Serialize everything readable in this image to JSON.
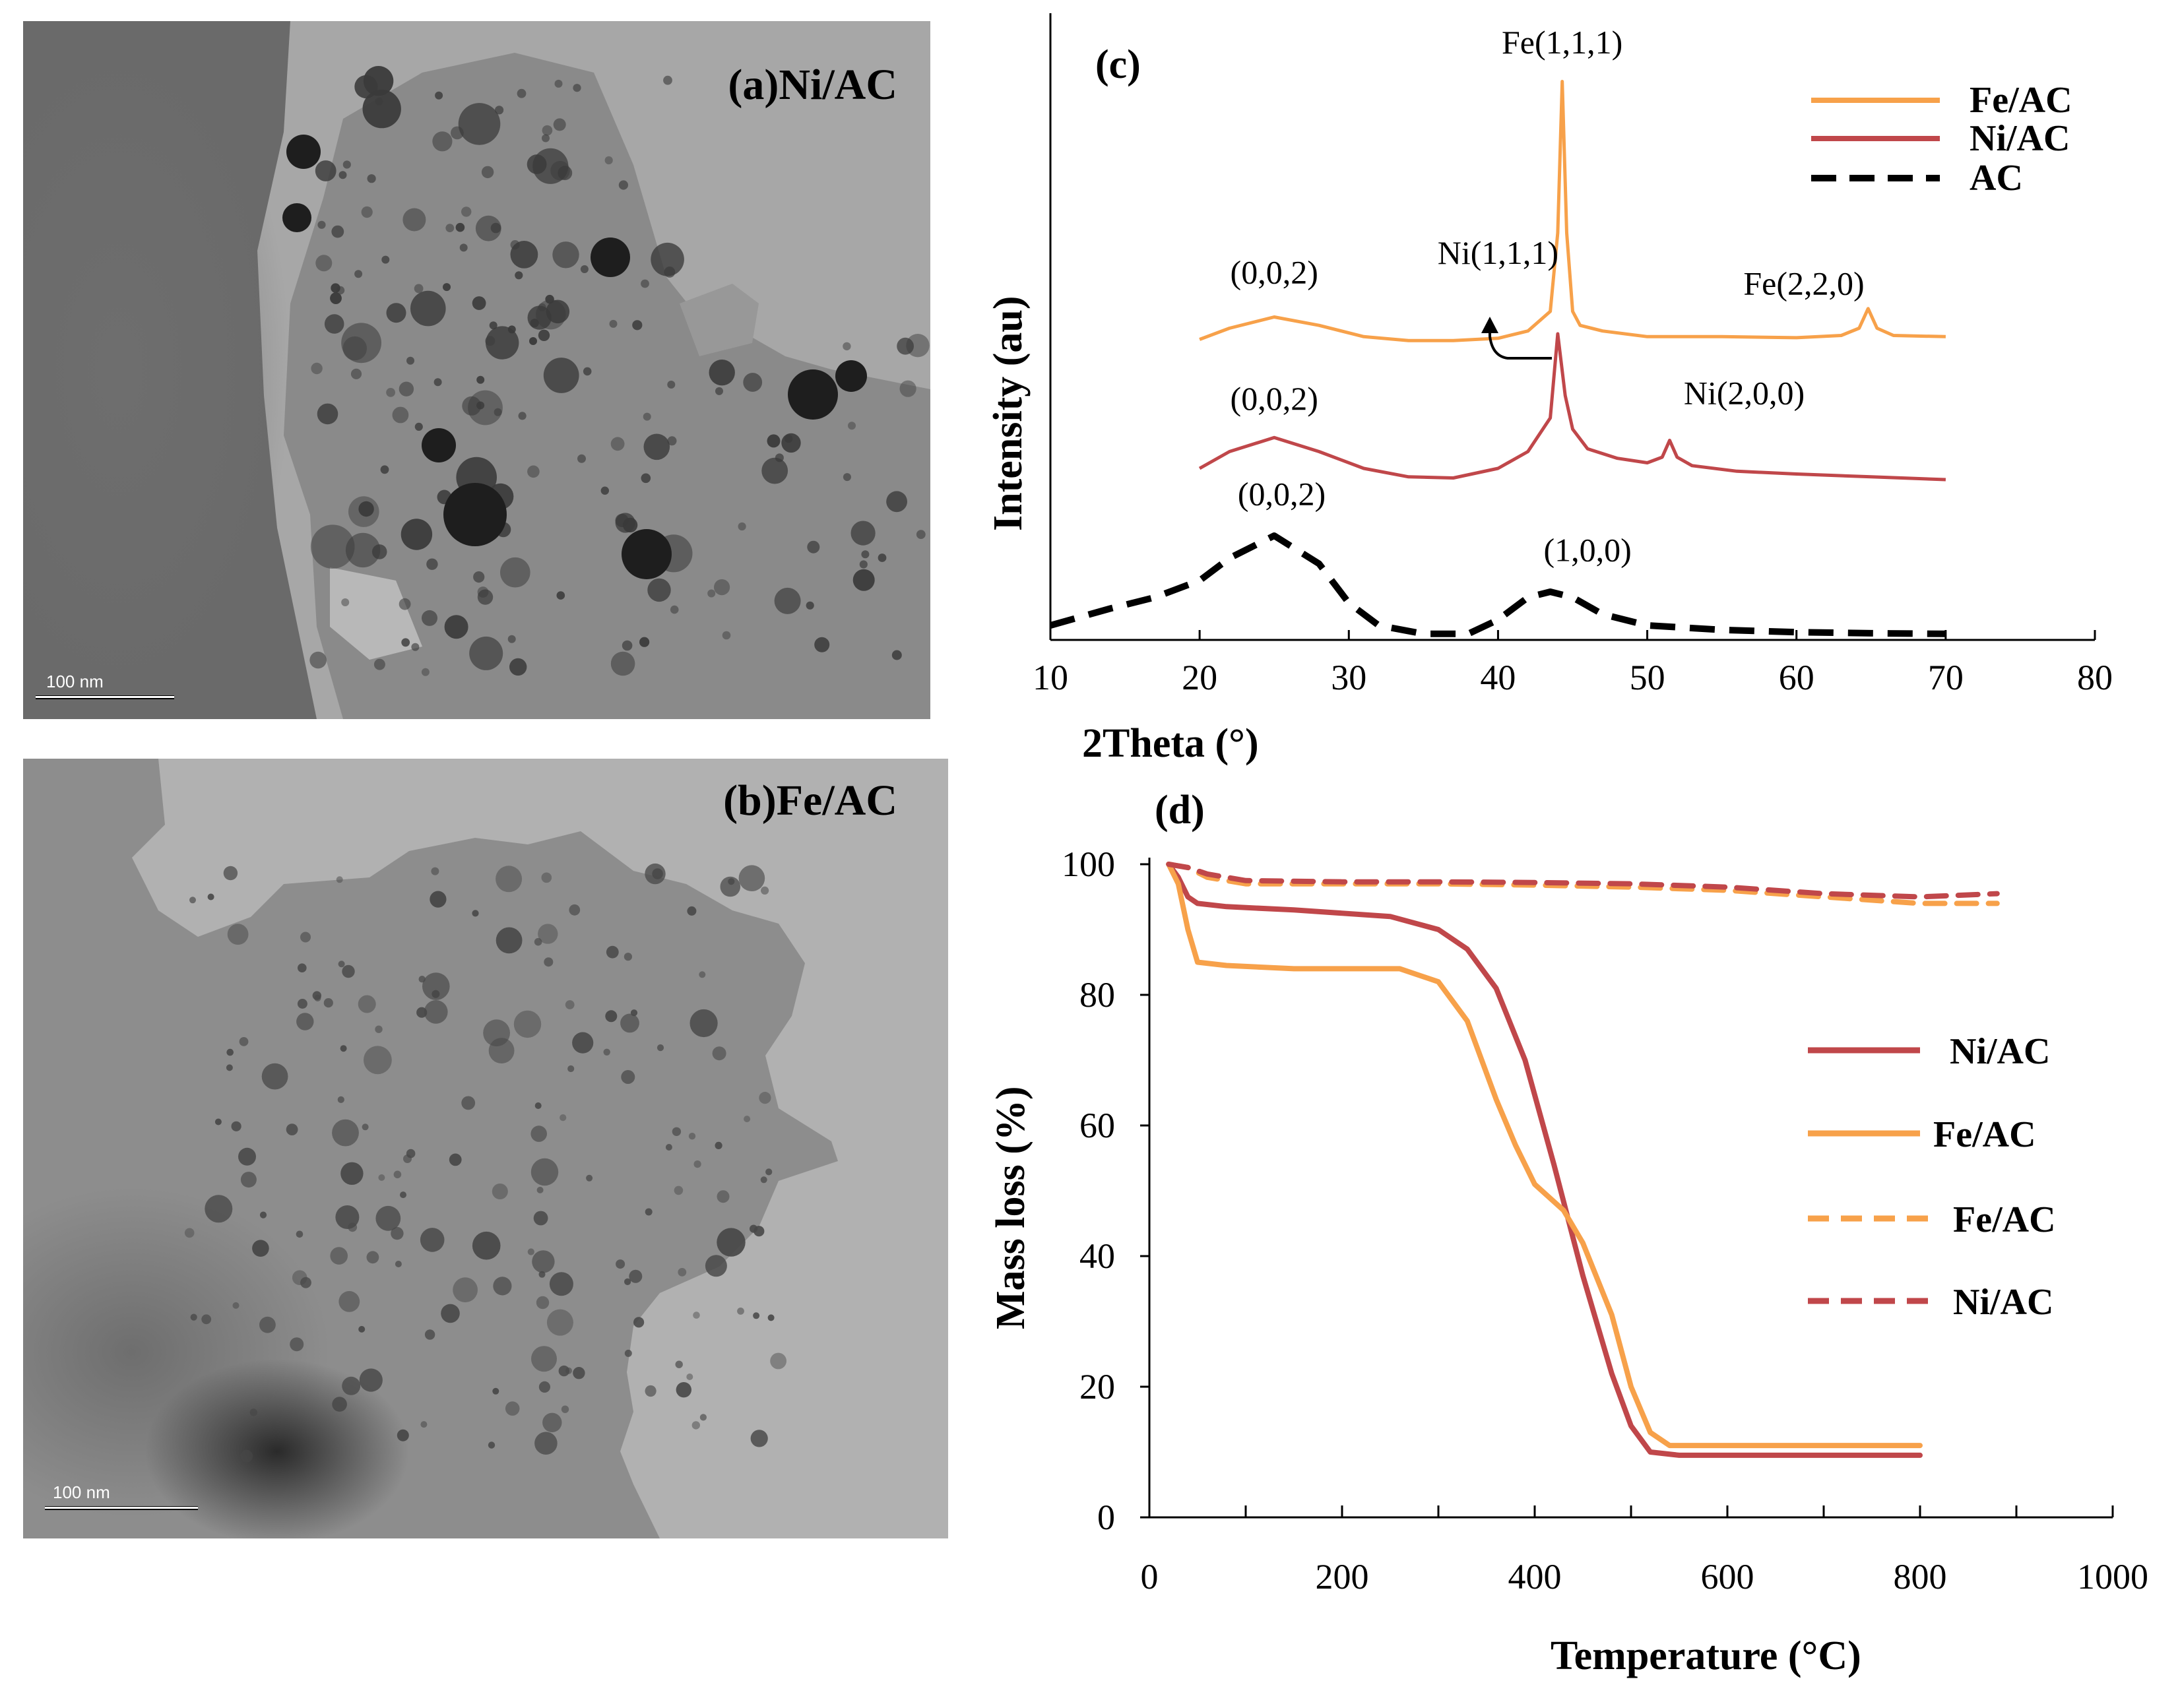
{
  "panels": {
    "a": {
      "label": "(a)Ni/AC",
      "scale_bar": "100 nm"
    },
    "b": {
      "label": "(b)Fe/AC",
      "scale_bar": "100 nm"
    }
  },
  "colors": {
    "fe": "#F7A14A",
    "ni": "#C0474A",
    "ac": "#000000"
  },
  "chart_data": [
    {
      "id": "c",
      "type": "line",
      "title": "(c)",
      "xlabel": "2Theta (°)",
      "ylabel": "Intensity (au)",
      "xlim": [
        10,
        80
      ],
      "xticks": [
        10,
        20,
        30,
        40,
        50,
        60,
        70,
        80
      ],
      "yticks_shown": false,
      "series": [
        {
          "name": "Fe/AC",
          "style": "solid",
          "color": "#F7A14A",
          "x": [
            20,
            22,
            25,
            28,
            31,
            34,
            37,
            40,
            42,
            43.5,
            44,
            44.3,
            44.6,
            45,
            45.5,
            47,
            50,
            55,
            60,
            63,
            64.2,
            64.8,
            65.4,
            66.5,
            70
          ],
          "y": [
            0.53,
            0.55,
            0.57,
            0.555,
            0.535,
            0.528,
            0.528,
            0.532,
            0.545,
            0.58,
            0.72,
            0.99,
            0.72,
            0.58,
            0.555,
            0.545,
            0.535,
            0.535,
            0.533,
            0.537,
            0.55,
            0.585,
            0.55,
            0.537,
            0.535
          ]
        },
        {
          "name": "Ni/AC",
          "style": "solid",
          "color": "#C0474A",
          "x": [
            20,
            22,
            25,
            28,
            31,
            34,
            37,
            40,
            42,
            43.5,
            44,
            44.5,
            45,
            46,
            48,
            50,
            51,
            51.5,
            52,
            53,
            56,
            60,
            65,
            70
          ],
          "y": [
            0.3,
            0.33,
            0.355,
            0.33,
            0.3,
            0.285,
            0.283,
            0.3,
            0.33,
            0.39,
            0.54,
            0.43,
            0.37,
            0.335,
            0.318,
            0.31,
            0.32,
            0.35,
            0.32,
            0.305,
            0.295,
            0.29,
            0.285,
            0.28
          ]
        },
        {
          "name": "AC",
          "style": "dashed",
          "color": "#000000",
          "x": [
            10,
            14,
            17,
            20,
            22,
            25,
            28,
            30,
            32,
            35,
            38,
            40,
            42,
            43.5,
            45,
            47,
            50,
            55,
            60,
            65,
            70
          ],
          "y": [
            0.02,
            0.05,
            0.07,
            0.1,
            0.14,
            0.18,
            0.13,
            0.06,
            0.02,
            0.005,
            0.005,
            0.03,
            0.07,
            0.08,
            0.07,
            0.04,
            0.02,
            0.012,
            0.008,
            0.006,
            0.005
          ]
        }
      ],
      "annotations": [
        {
          "text": "Fe(1,1,1)",
          "x": 44.3,
          "y": 1.04
        },
        {
          "text": "Ni(1,1,1)",
          "x": 40,
          "y": 0.665
        },
        {
          "text": "Fe(2,2,0)",
          "x": 60.5,
          "y": 0.61
        },
        {
          "text": "(0,0,2)",
          "x": 25,
          "y": 0.63
        },
        {
          "text": "Ni(2,0,0)",
          "x": 56.5,
          "y": 0.415
        },
        {
          "text": "(0,0,2)",
          "x": 25,
          "y": 0.405
        },
        {
          "text": "(0,0,2)",
          "x": 25.5,
          "y": 0.235
        },
        {
          "text": "(1,0,0)",
          "x": 46,
          "y": 0.135
        }
      ],
      "legend": {
        "position": "top-right",
        "entries": [
          "Fe/AC",
          "Ni/AC",
          "AC"
        ]
      }
    },
    {
      "id": "d",
      "type": "line",
      "title": "(d)",
      "xlabel": "Temperature (°C)",
      "ylabel": "Mass loss (%)",
      "xlim": [
        0,
        1000
      ],
      "ylim": [
        0,
        100
      ],
      "xticks": [
        0,
        200,
        400,
        600,
        800,
        1000
      ],
      "yticks": [
        0,
        20,
        40,
        60,
        80,
        100
      ],
      "series": [
        {
          "name": "Ni/AC",
          "style": "solid",
          "color": "#C0474A",
          "x": [
            20,
            30,
            40,
            50,
            80,
            150,
            250,
            300,
            330,
            360,
            390,
            420,
            450,
            480,
            500,
            520,
            550,
            600,
            700,
            800
          ],
          "y": [
            100,
            98,
            95,
            94,
            93.5,
            93,
            92,
            90,
            87,
            81,
            70,
            54,
            37,
            22,
            14,
            10,
            9.5,
            9.5,
            9.5,
            9.5
          ]
        },
        {
          "name": "Fe/AC",
          "style": "solid",
          "color": "#F7A14A",
          "x": [
            20,
            30,
            40,
            50,
            80,
            150,
            260,
            300,
            330,
            360,
            380,
            400,
            430,
            450,
            480,
            500,
            520,
            540,
            600,
            700,
            800
          ],
          "y": [
            100,
            97,
            90,
            85,
            84.5,
            84,
            84,
            82,
            76,
            64,
            57,
            51,
            47,
            42,
            31,
            20,
            13,
            11,
            11,
            11,
            11
          ]
        },
        {
          "name": "Fe/AC",
          "style": "dashed",
          "color": "#F7A14A",
          "x": [
            20,
            40,
            60,
            100,
            200,
            300,
            400,
            500,
            600,
            700,
            800,
            880
          ],
          "y": [
            100,
            99.5,
            98,
            97,
            97,
            97,
            96.8,
            96.5,
            96,
            95,
            94,
            94
          ]
        },
        {
          "name": "Ni/AC",
          "style": "dashed",
          "color": "#C0474A",
          "x": [
            20,
            40,
            60,
            100,
            200,
            300,
            400,
            500,
            600,
            700,
            800,
            880
          ],
          "y": [
            100,
            99.5,
            98.5,
            97.5,
            97.3,
            97.3,
            97.2,
            97,
            96.5,
            95.5,
            95,
            95.5
          ]
        }
      ],
      "legend": {
        "position": "right",
        "entries": [
          "Ni/AC",
          "Fe/AC",
          "Fe/AC",
          "Ni/AC"
        ]
      }
    }
  ]
}
